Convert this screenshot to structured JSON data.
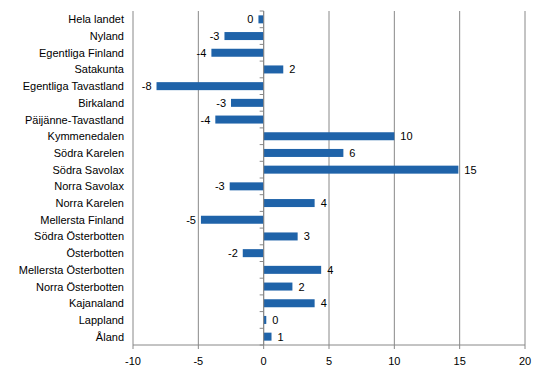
{
  "chart_data": {
    "type": "bar",
    "orientation": "horizontal",
    "categories": [
      "Hela landet",
      "Nyland",
      "Egentliga Finland",
      "Satakunta",
      "Egentliga Tavastland",
      "Birkaland",
      "Päijänne-Tavastland",
      "Kymmenedalen",
      "Södra Karelen",
      "Södra Savolax",
      "Norra Savolax",
      "Norra Karelen",
      "Mellersta Finland",
      "Södra Österbotten",
      "Österbotten",
      "Mellersta Österbotten",
      "Norra Österbotten",
      "Kajanaland",
      "Lappland",
      "Åland"
    ],
    "values": [
      -0.4,
      -3.0,
      -4.0,
      1.5,
      -8.2,
      -2.5,
      -3.7,
      10.0,
      6.1,
      14.9,
      -2.6,
      3.9,
      -4.8,
      2.6,
      -1.6,
      4.4,
      2.2,
      3.9,
      0.2,
      0.6
    ],
    "value_labels": [
      "0",
      "-3",
      "-4",
      "2",
      "-8",
      "-3",
      "-4",
      "10",
      "6",
      "15",
      "-3",
      "4",
      "-5",
      "3",
      "-2",
      "4",
      "2",
      "4",
      "0",
      "1"
    ],
    "color": "#1f63a9",
    "xlim": [
      -10,
      20
    ],
    "xticks": [
      -10,
      -5,
      0,
      5,
      10,
      15,
      20
    ],
    "grid": true,
    "data_labels": true
  }
}
